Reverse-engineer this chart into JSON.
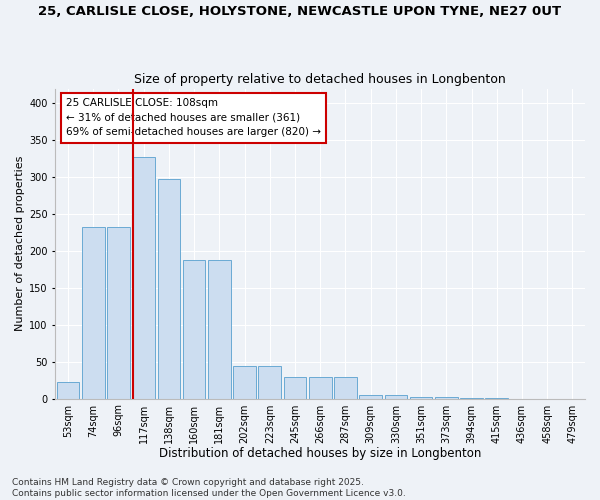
{
  "title_line1": "25, CARLISLE CLOSE, HOLYSTONE, NEWCASTLE UPON TYNE, NE27 0UT",
  "title_line2": "Size of property relative to detached houses in Longbenton",
  "xlabel": "Distribution of detached houses by size in Longbenton",
  "ylabel": "Number of detached properties",
  "categories": [
    "53sqm",
    "74sqm",
    "96sqm",
    "117sqm",
    "138sqm",
    "160sqm",
    "181sqm",
    "202sqm",
    "223sqm",
    "245sqm",
    "266sqm",
    "287sqm",
    "309sqm",
    "330sqm",
    "351sqm",
    "373sqm",
    "394sqm",
    "415sqm",
    "436sqm",
    "458sqm",
    "479sqm"
  ],
  "values": [
    22,
    233,
    233,
    327,
    298,
    188,
    188,
    44,
    44,
    29,
    29,
    29,
    5,
    5,
    2,
    2,
    1,
    1,
    0,
    0,
    0
  ],
  "bar_color": "#ccddf0",
  "bar_edge_color": "#6aaad4",
  "vline_pos": 2.57,
  "vline_color": "#cc0000",
  "annotation_text": "25 CARLISLE CLOSE: 108sqm\n← 31% of detached houses are smaller (361)\n69% of semi-detached houses are larger (820) →",
  "annotation_box_color": "#ffffff",
  "annotation_box_edge": "#cc0000",
  "ylim": [
    0,
    420
  ],
  "yticks": [
    0,
    50,
    100,
    150,
    200,
    250,
    300,
    350,
    400
  ],
  "footer_text": "Contains HM Land Registry data © Crown copyright and database right 2025.\nContains public sector information licensed under the Open Government Licence v3.0.",
  "bg_color": "#eef2f7",
  "plot_bg_color": "#eef2f7",
  "grid_color": "#ffffff",
  "title1_fontsize": 9.5,
  "title2_fontsize": 9,
  "xlabel_fontsize": 8.5,
  "ylabel_fontsize": 8,
  "tick_fontsize": 7,
  "footer_fontsize": 6.5,
  "annot_fontsize": 7.5
}
